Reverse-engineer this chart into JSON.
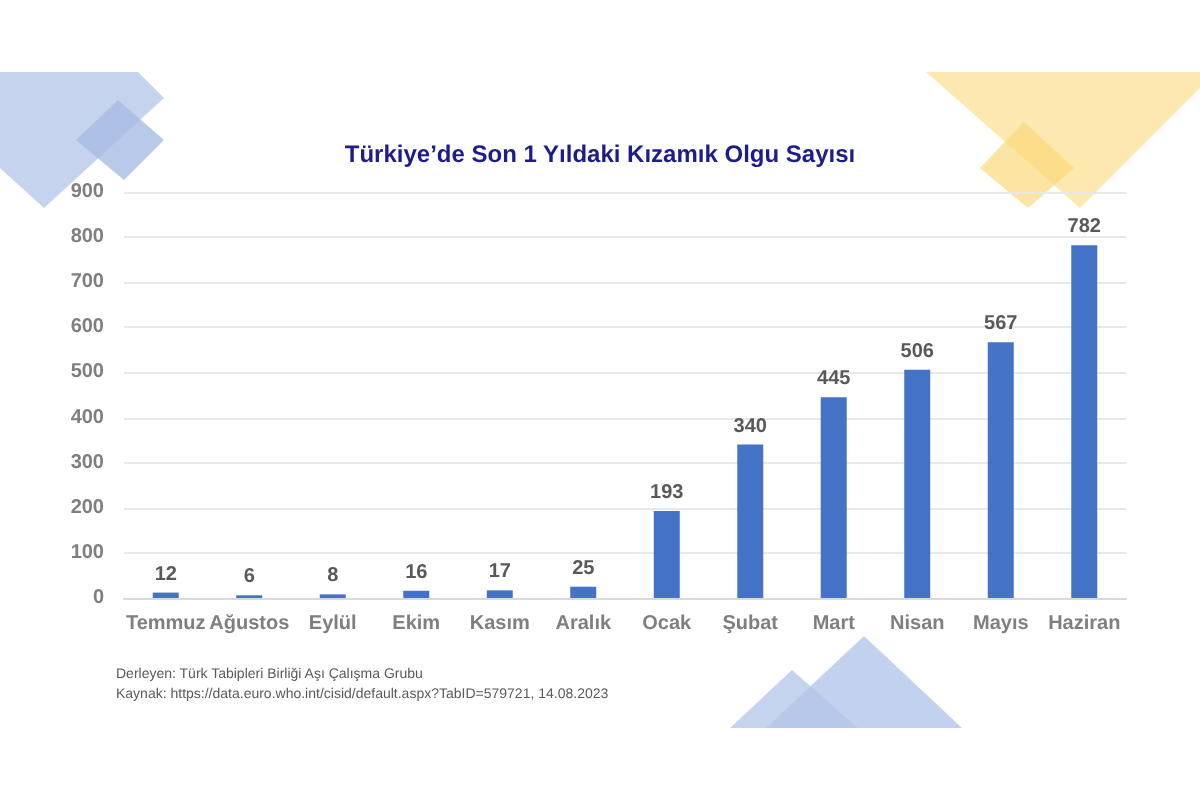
{
  "chart_data": {
    "type": "bar",
    "title": "Türkiye’de Son 1 Yıldaki Kızamık Olgu Sayısı",
    "categories": [
      "Temmuz",
      "Ağustos",
      "Eylül",
      "Ekim",
      "Kasım",
      "Aralık",
      "Ocak",
      "Şubat",
      "Mart",
      "Nisan",
      "Mayıs",
      "Haziran"
    ],
    "values": [
      12,
      6,
      8,
      16,
      17,
      25,
      193,
      340,
      445,
      506,
      567,
      782
    ],
    "color": "#4472c4",
    "ylim": [
      0,
      900
    ],
    "yticks": [
      0,
      100,
      200,
      300,
      400,
      500,
      600,
      700,
      800,
      900
    ],
    "grid": "y",
    "data_labels": true,
    "annotations": [
      "Derleyen: Türk Tabipleri Birliği Aşı Çalışma Grubu",
      "Kaynak: https://data.euro.who.int/cisid/default.aspx?TabID=579721, 14.08.2023"
    ]
  }
}
